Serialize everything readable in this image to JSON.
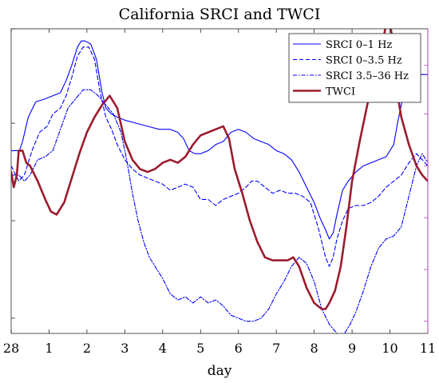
{
  "chart_data": {
    "type": "line",
    "title": "California SRCI and TWCI",
    "xlabel": "day",
    "ylabel": "",
    "x_tick_labels": [
      "28",
      "1",
      "2",
      "3",
      "4",
      "5",
      "6",
      "7",
      "8",
      "9",
      "10",
      "11"
    ],
    "xlim": [
      0,
      11
    ],
    "ylim": [
      0,
      1
    ],
    "grid": false,
    "legend_position": "top-right",
    "series": [
      {
        "name": "SRCI 0–1 Hz",
        "color": "#0000ff",
        "style": "solid",
        "x": [
          0.0,
          0.22,
          0.3,
          0.45,
          0.65,
          0.9,
          1.1,
          1.3,
          1.45,
          1.6,
          1.75,
          1.85,
          1.95,
          2.1,
          2.25,
          2.4,
          2.5,
          2.65,
          2.8,
          3.0,
          3.3,
          3.6,
          3.9,
          4.2,
          4.4,
          4.55,
          4.7,
          4.85,
          5.0,
          5.2,
          5.4,
          5.6,
          5.8,
          6.0,
          6.2,
          6.4,
          6.6,
          6.8,
          7.0,
          7.2,
          7.4,
          7.6,
          7.8,
          8.0,
          8.15,
          8.3,
          8.4,
          8.5,
          8.6,
          8.75,
          8.9,
          9.1,
          9.3,
          9.5,
          9.7,
          9.9,
          10.1,
          10.2,
          10.35,
          10.5,
          10.7,
          10.85,
          10.95,
          11.0
        ],
        "y": [
          0.6,
          0.6,
          0.63,
          0.71,
          0.76,
          0.77,
          0.78,
          0.79,
          0.83,
          0.88,
          0.94,
          0.96,
          0.96,
          0.95,
          0.9,
          0.79,
          0.74,
          0.72,
          0.71,
          0.7,
          0.69,
          0.68,
          0.67,
          0.67,
          0.66,
          0.64,
          0.6,
          0.59,
          0.59,
          0.6,
          0.62,
          0.63,
          0.66,
          0.67,
          0.66,
          0.64,
          0.63,
          0.62,
          0.6,
          0.59,
          0.57,
          0.53,
          0.48,
          0.43,
          0.38,
          0.34,
          0.31,
          0.33,
          0.39,
          0.47,
          0.5,
          0.53,
          0.55,
          0.56,
          0.57,
          0.58,
          0.62,
          0.69,
          0.78,
          0.83,
          0.85,
          0.85,
          0.85,
          0.85
        ]
      },
      {
        "name": "SRCI 0–3.5 Hz",
        "color": "#0000ff",
        "style": "dashed",
        "x": [
          0.0,
          0.2,
          0.35,
          0.55,
          0.75,
          0.95,
          1.1,
          1.3,
          1.45,
          1.6,
          1.75,
          1.9,
          2.05,
          2.2,
          2.35,
          2.5,
          2.65,
          2.8,
          3.0,
          3.2,
          3.4,
          3.6,
          3.8,
          4.0,
          4.2,
          4.4,
          4.6,
          4.8,
          5.0,
          5.2,
          5.4,
          5.6,
          5.8,
          6.0,
          6.2,
          6.35,
          6.5,
          6.7,
          6.9,
          7.1,
          7.3,
          7.5,
          7.7,
          7.9,
          8.1,
          8.3,
          8.4,
          8.5,
          8.6,
          8.75,
          8.9,
          9.1,
          9.3,
          9.5,
          9.7,
          9.9,
          10.1,
          10.3,
          10.5,
          10.7,
          10.85,
          11.0
        ],
        "y": [
          0.55,
          0.5,
          0.52,
          0.6,
          0.66,
          0.68,
          0.72,
          0.74,
          0.78,
          0.84,
          0.91,
          0.94,
          0.94,
          0.9,
          0.79,
          0.71,
          0.67,
          0.62,
          0.57,
          0.54,
          0.52,
          0.51,
          0.5,
          0.49,
          0.47,
          0.48,
          0.49,
          0.48,
          0.44,
          0.44,
          0.42,
          0.44,
          0.45,
          0.46,
          0.48,
          0.5,
          0.5,
          0.48,
          0.46,
          0.47,
          0.46,
          0.46,
          0.45,
          0.43,
          0.35,
          0.25,
          0.22,
          0.25,
          0.31,
          0.37,
          0.41,
          0.42,
          0.42,
          0.43,
          0.45,
          0.48,
          0.5,
          0.52,
          0.56,
          0.59,
          0.57,
          0.55
        ]
      },
      {
        "name": "SRCI 3.5–36 Hz",
        "color": "#0000ff",
        "style": "dashdot",
        "x": [
          0.0,
          0.2,
          0.35,
          0.5,
          0.7,
          0.9,
          1.1,
          1.3,
          1.5,
          1.7,
          1.9,
          2.1,
          2.3,
          2.5,
          2.7,
          2.9,
          3.05,
          3.2,
          3.35,
          3.5,
          3.65,
          3.8,
          4.0,
          4.2,
          4.4,
          4.6,
          4.8,
          5.0,
          5.2,
          5.4,
          5.6,
          5.8,
          6.0,
          6.2,
          6.4,
          6.6,
          6.8,
          7.0,
          7.2,
          7.4,
          7.6,
          7.8,
          8.0,
          8.2,
          8.4,
          8.6,
          8.7,
          8.8,
          8.95,
          9.1,
          9.3,
          9.5,
          9.7,
          9.9,
          10.1,
          10.3,
          10.5,
          10.7,
          10.85,
          11.0
        ],
        "y": [
          0.52,
          0.52,
          0.5,
          0.52,
          0.57,
          0.58,
          0.6,
          0.67,
          0.74,
          0.77,
          0.8,
          0.8,
          0.78,
          0.75,
          0.72,
          0.66,
          0.57,
          0.46,
          0.37,
          0.3,
          0.25,
          0.22,
          0.18,
          0.13,
          0.11,
          0.12,
          0.1,
          0.12,
          0.1,
          0.11,
          0.09,
          0.06,
          0.05,
          0.04,
          0.04,
          0.05,
          0.08,
          0.13,
          0.17,
          0.22,
          0.25,
          0.23,
          0.17,
          0.08,
          0.03,
          0.0,
          -0.01,
          0.0,
          0.03,
          0.07,
          0.14,
          0.22,
          0.28,
          0.31,
          0.32,
          0.35,
          0.45,
          0.55,
          0.59,
          0.56
        ]
      },
      {
        "name": "TWCI",
        "color": "#9b1c2e",
        "style": "solid",
        "x": [
          0.0,
          0.07,
          0.15,
          0.2,
          0.3,
          0.4,
          0.5,
          0.7,
          0.9,
          1.05,
          1.2,
          1.4,
          1.6,
          1.8,
          2.0,
          2.2,
          2.4,
          2.6,
          2.8,
          3.0,
          3.2,
          3.4,
          3.6,
          3.8,
          4.0,
          4.2,
          4.4,
          4.6,
          4.8,
          5.0,
          5.2,
          5.4,
          5.6,
          5.75,
          5.9,
          6.1,
          6.3,
          6.5,
          6.7,
          6.9,
          7.1,
          7.3,
          7.45,
          7.6,
          7.8,
          8.0,
          8.2,
          8.3,
          8.4,
          8.55,
          8.7,
          8.85,
          9.0,
          9.2,
          9.4,
          9.6,
          9.8,
          9.95,
          10.05,
          10.15,
          10.3,
          10.5,
          10.7,
          10.85,
          11.0
        ],
        "y": [
          0.53,
          0.48,
          0.52,
          0.6,
          0.6,
          0.56,
          0.55,
          0.5,
          0.44,
          0.4,
          0.39,
          0.43,
          0.51,
          0.59,
          0.66,
          0.71,
          0.75,
          0.78,
          0.74,
          0.63,
          0.57,
          0.54,
          0.53,
          0.54,
          0.56,
          0.57,
          0.56,
          0.58,
          0.62,
          0.65,
          0.66,
          0.67,
          0.68,
          0.64,
          0.54,
          0.46,
          0.37,
          0.3,
          0.25,
          0.24,
          0.24,
          0.24,
          0.25,
          0.22,
          0.15,
          0.1,
          0.08,
          0.08,
          0.1,
          0.14,
          0.22,
          0.35,
          0.5,
          0.63,
          0.75,
          0.85,
          0.95,
          1.05,
          0.98,
          0.82,
          0.71,
          0.62,
          0.55,
          0.52,
          0.5
        ]
      }
    ]
  }
}
